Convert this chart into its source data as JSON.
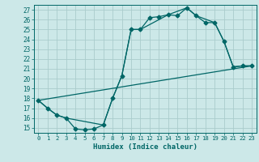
{
  "xlabel": "Humidex (Indice chaleur)",
  "bg_color": "#cce8e8",
  "grid_color": "#aacccc",
  "line_color": "#006666",
  "xlim": [
    -0.5,
    23.5
  ],
  "ylim": [
    14.5,
    27.5
  ],
  "yticks": [
    15,
    16,
    17,
    18,
    19,
    20,
    21,
    22,
    23,
    24,
    25,
    26,
    27
  ],
  "xticks": [
    0,
    1,
    2,
    3,
    4,
    5,
    6,
    7,
    8,
    9,
    10,
    11,
    12,
    13,
    14,
    15,
    16,
    17,
    18,
    19,
    20,
    21,
    22,
    23
  ],
  "line1_x": [
    0,
    1,
    2,
    3,
    4,
    5,
    6,
    7,
    8,
    9,
    10,
    11,
    12,
    13,
    14,
    15,
    16,
    17,
    18,
    19,
    20,
    21,
    22,
    23
  ],
  "line1_y": [
    17.8,
    17.0,
    16.3,
    16.0,
    14.9,
    14.8,
    14.9,
    15.3,
    18.0,
    20.3,
    25.0,
    25.0,
    26.2,
    26.3,
    26.5,
    26.4,
    27.2,
    26.4,
    25.7,
    25.7,
    23.8,
    21.2,
    21.3,
    21.3
  ],
  "line2_x": [
    0,
    1,
    2,
    3,
    7,
    8,
    9,
    10,
    11,
    14,
    16,
    17,
    19,
    20,
    21,
    22,
    23
  ],
  "line2_y": [
    17.8,
    17.0,
    16.3,
    16.0,
    15.3,
    18.0,
    20.3,
    25.0,
    25.0,
    26.5,
    27.2,
    26.4,
    25.7,
    23.8,
    21.2,
    21.3,
    21.3
  ],
  "line3_x": [
    0,
    23
  ],
  "line3_y": [
    17.8,
    21.3
  ],
  "markersize": 2.5,
  "linewidth": 0.9
}
